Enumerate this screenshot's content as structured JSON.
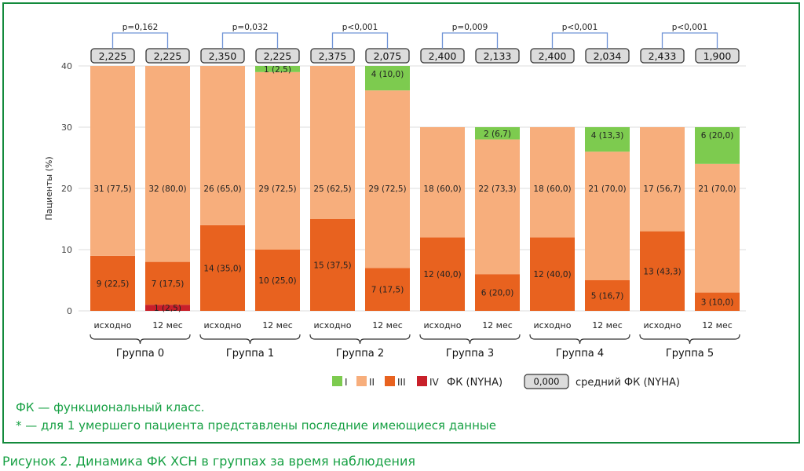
{
  "chart_data": {
    "type": "bar",
    "stacked": true,
    "ylabel": "Пациенты (%)",
    "ylim": [
      0,
      40
    ],
    "yticks": [
      "0",
      "10",
      "20",
      "30",
      "40"
    ],
    "grid": true,
    "groups": [
      "Группа 0",
      "Группа 1",
      "Группа 2",
      "Группа 3",
      "Группа 4",
      "Группа 5"
    ],
    "timepoints": [
      "исходно",
      "12 мес"
    ],
    "colors": {
      "I": "#7dcb4f",
      "II": "#f7ae7c",
      "III": "#e8621f",
      "IV": "#c8202a"
    },
    "bars": [
      {
        "group": 0,
        "tp": 0,
        "mean": "2,225",
        "segments": {
          "IV": 0,
          "III": 9,
          "II": 31,
          "I": 0
        },
        "labels": {
          "III": "9 (22,5)",
          "II": "31 (77,5)"
        }
      },
      {
        "group": 0,
        "tp": 1,
        "mean": "2,225",
        "segments": {
          "IV": 1,
          "III": 7,
          "II": 32,
          "I": 0
        },
        "labels": {
          "IV": "1 (2,5)",
          "III": "7 (17,5)",
          "II": "32 (80,0)"
        }
      },
      {
        "group": 1,
        "tp": 0,
        "mean": "2,350",
        "segments": {
          "IV": 0,
          "III": 14,
          "II": 26,
          "I": 0
        },
        "labels": {
          "III": "14 (35,0)",
          "II": "26 (65,0)"
        }
      },
      {
        "group": 1,
        "tp": 1,
        "mean": "2,225",
        "segments": {
          "IV": 0,
          "III": 10,
          "II": 29,
          "I": 1
        },
        "labels": {
          "III": "10 (25,0)",
          "II": "29 (72,5)",
          "I": "1 (2,5)"
        }
      },
      {
        "group": 2,
        "tp": 0,
        "mean": "2,375",
        "segments": {
          "IV": 0,
          "III": 15,
          "II": 25,
          "I": 0
        },
        "labels": {
          "III": "15 (37,5)",
          "II": "25 (62,5)"
        }
      },
      {
        "group": 2,
        "tp": 1,
        "mean": "2,075",
        "segments": {
          "IV": 0,
          "III": 7,
          "II": 29,
          "I": 4
        },
        "labels": {
          "III": "7 (17,5)",
          "II": "29 (72,5)",
          "I": "4 (10,0)"
        }
      },
      {
        "group": 3,
        "tp": 0,
        "mean": "2,400",
        "segments": {
          "IV": 0,
          "III": 12,
          "II": 18,
          "I": 0
        },
        "labels": {
          "III": "12 (40,0)",
          "II": "18 (60,0)"
        }
      },
      {
        "group": 3,
        "tp": 1,
        "mean": "2,133",
        "segments": {
          "IV": 0,
          "III": 6,
          "II": 22,
          "I": 2
        },
        "labels": {
          "III": "6 (20,0)",
          "II": "22 (73,3)",
          "I": "2 (6,7)"
        }
      },
      {
        "group": 4,
        "tp": 0,
        "mean": "2,400",
        "segments": {
          "IV": 0,
          "III": 12,
          "II": 18,
          "I": 0
        },
        "labels": {
          "III": "12 (40,0)",
          "II": "18 (60,0)"
        }
      },
      {
        "group": 4,
        "tp": 1,
        "mean": "2,034",
        "segments": {
          "IV": 0,
          "III": 5,
          "II": 21,
          "I": 4
        },
        "labels": {
          "III": "5 (16,7)",
          "II": "21 (70,0)",
          "I": "4 (13,3)"
        }
      },
      {
        "group": 5,
        "tp": 0,
        "mean": "2,433",
        "segments": {
          "IV": 0,
          "III": 13,
          "II": 17,
          "I": 0
        },
        "labels": {
          "III": "13 (43,3)",
          "II": "17 (56,7)"
        }
      },
      {
        "group": 5,
        "tp": 1,
        "mean": "1,900",
        "segments": {
          "IV": 0,
          "III": 3,
          "II": 21,
          "I": 6
        },
        "labels": {
          "III": "3 (10,0)",
          "II": "21 (70,0)",
          "I": "6 (20,0)"
        }
      }
    ],
    "pvalues": [
      "p=0,162",
      "p=0,032",
      "p<0,001",
      "p=0,009",
      "p<0,001",
      "p<0,001"
    ],
    "legend": {
      "classes": [
        "I",
        "II",
        "III",
        "IV"
      ],
      "classes_title": "ФК (NYHA)",
      "mean_box": "0,000",
      "mean_label": "средний ФК (NYHA)",
      "placement": "bottom"
    }
  },
  "notes": [
    "ФК — функциональный класс.",
    "* — для 1 умершего пациента представлены последние имеющиеся данные"
  ],
  "caption": "Рисунок 2. Динамика ФК ХСН в группах за время наблюдения"
}
